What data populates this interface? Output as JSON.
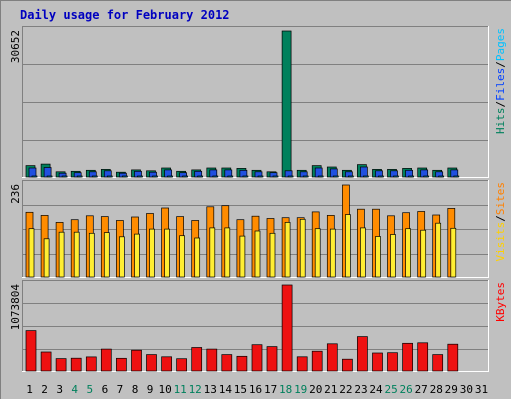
{
  "chart_data": {
    "type": "bar",
    "title": "Daily usage for February 2012",
    "x_labels": [
      "1",
      "2",
      "3",
      "4",
      "5",
      "6",
      "7",
      "8",
      "9",
      "10",
      "11",
      "12",
      "13",
      "14",
      "15",
      "16",
      "17",
      "18",
      "19",
      "20",
      "21",
      "22",
      "23",
      "24",
      "25",
      "26",
      "27",
      "28",
      "29",
      "30",
      "31"
    ],
    "weekend_days": [
      4,
      5,
      11,
      12,
      18,
      19,
      25,
      26
    ],
    "day_count_with_data": 29,
    "panels": [
      {
        "id": "hits",
        "ymax_label": "30652",
        "ymax": 30652,
        "legend": [
          {
            "text": "Hits",
            "color": "#00805c"
          },
          {
            "text": "/",
            "color": "#000000"
          },
          {
            "text": "Files",
            "color": "#0040ff"
          },
          {
            "text": "/",
            "color": "#000000"
          },
          {
            "text": "Pages",
            "color": "#00c0ff"
          }
        ],
        "series": [
          {
            "name": "Hits",
            "color": "#00805c",
            "values": [
              2400,
              2700,
              1100,
              1200,
              1400,
              1600,
              1000,
              1500,
              1300,
              1900,
              1200,
              1500,
              1900,
              1900,
              1800,
              1400,
              1100,
              30652,
              1400,
              2400,
              2100,
              1400,
              2600,
              1600,
              1600,
              1800,
              1900,
              1400,
              1900
            ]
          },
          {
            "name": "Files",
            "color": "#2050e0",
            "values": [
              1900,
              2000,
              800,
              900,
              1100,
              1300,
              800,
              1200,
              1000,
              1500,
              900,
              1200,
              1500,
              1500,
              1400,
              1100,
              900,
              1300,
              1100,
              1900,
              1700,
              1100,
              2100,
              1300,
              1300,
              1400,
              1500,
              1100,
              1500
            ]
          },
          {
            "name": "Pages",
            "color": "#00c0ff",
            "values": [
              150,
              170,
              80,
              90,
              100,
              120,
              80,
              110,
              100,
              130,
              90,
              110,
              130,
              130,
              120,
              100,
              90,
              120,
              100,
              160,
              140,
              100,
              170,
              120,
              120,
              130,
              140,
              100,
              140
            ]
          }
        ]
      },
      {
        "id": "visits",
        "ymax_label": "236",
        "ymax": 236,
        "legend": [
          {
            "text": "Visits",
            "color": "#ffd000"
          },
          {
            "text": "/",
            "color": "#000000"
          },
          {
            "text": "Sites",
            "color": "#ff8000"
          }
        ],
        "series": [
          {
            "name": "Sites",
            "color": "#ff8c00",
            "values": [
              166,
              158,
              140,
              147,
              157,
              155,
              145,
              154,
              163,
              177,
              155,
              145,
              180,
              183,
              147,
              156,
              150,
              152,
              152,
              167,
              158,
              236,
              174,
              174,
              157,
              165,
              168,
              159,
              176
            ]
          },
          {
            "name": "Visits",
            "color": "#ffee33",
            "values": [
              124,
              98,
              115,
              115,
              112,
              114,
              103,
              110,
              123,
              123,
              106,
              100,
              126,
              126,
              105,
              118,
              112,
              140,
              148,
              124,
              123,
              160,
              126,
              104,
              109,
              124,
              120,
              138,
              125
            ]
          }
        ]
      },
      {
        "id": "kbytes",
        "ymax_label": "1073804",
        "ymax": 1073804,
        "legend": [
          {
            "text": "KBytes",
            "color": "#ff0000"
          }
        ],
        "series": [
          {
            "name": "KBytes",
            "color": "#ee1111",
            "values": [
              505000,
              237000,
              155000,
              160000,
              176000,
              273000,
              158000,
              260000,
              205000,
              177000,
              154000,
              293000,
              273000,
              205000,
              184000,
              329000,
              305000,
              1073804,
              177000,
              247000,
              340000,
              147000,
              429000,
              225000,
              228000,
              346000,
              352000,
              205000,
              335000
            ]
          }
        ]
      }
    ]
  }
}
